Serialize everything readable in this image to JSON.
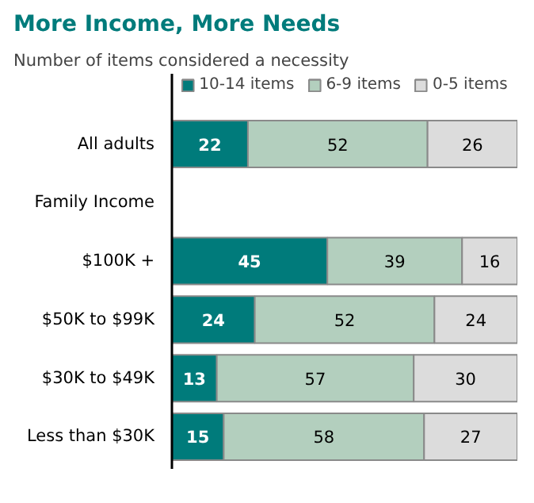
{
  "chart_data": {
    "type": "bar",
    "orientation": "horizontal",
    "stacked": true,
    "title": "More Income, More Needs",
    "subtitle": "Number of items considered a necessity",
    "categories": [
      "All adults",
      "Family Income",
      "$100K +",
      "$50K to $99K",
      "$30K to $49K",
      "Less than $30K"
    ],
    "series": [
      {
        "name": "10-14 items",
        "color": "#007b7b",
        "values": [
          22,
          null,
          45,
          24,
          13,
          15
        ]
      },
      {
        "name": "6-9 items",
        "color": "#b3cfbe",
        "values": [
          52,
          null,
          39,
          52,
          57,
          58
        ]
      },
      {
        "name": "0-5 items",
        "color": "#dcdcdc",
        "values": [
          26,
          null,
          16,
          24,
          30,
          27
        ]
      }
    ],
    "xlim": [
      0,
      100
    ],
    "data_labels": true,
    "legend": "top",
    "grid": false,
    "tick_labels": "y"
  }
}
